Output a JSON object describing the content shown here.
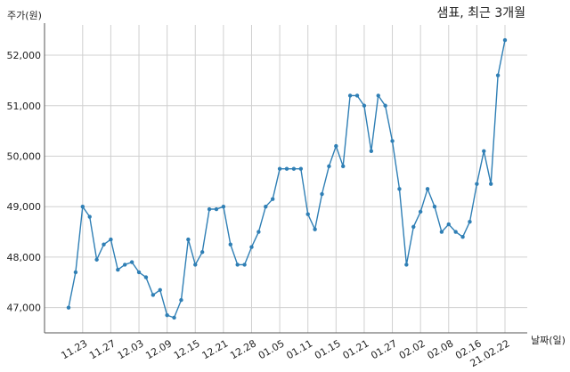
{
  "chart_data": {
    "type": "line",
    "title": "샘표, 최근 3개월",
    "xlabel": "날짜(일)",
    "ylabel": "주가(원)",
    "ylim": [
      46500,
      52600
    ],
    "yticks": [
      47000,
      48000,
      49000,
      50000,
      51000,
      52000
    ],
    "ytick_labels": [
      "47,000",
      "48,000",
      "49,000",
      "50,000",
      "51,000",
      "52,000"
    ],
    "xtick_labels": [
      "11.23",
      "11.27",
      "12.03",
      "12.09",
      "12.15",
      "12.21",
      "12.28",
      "01.05",
      "01.11",
      "01.15",
      "01.21",
      "01.27",
      "02.02",
      "02.08",
      "02.16",
      "21.02.22"
    ],
    "xtick_index": [
      2,
      6,
      10,
      14,
      18,
      22,
      26,
      30,
      34,
      38,
      42,
      46,
      50,
      54,
      58,
      62
    ],
    "grid": true,
    "line_color": "#2f7fb5",
    "series": [
      {
        "values": [
          47000,
          47700,
          49000,
          48800,
          47950,
          48250,
          48350,
          47750,
          47850,
          47900,
          47700,
          47600,
          47250,
          47350,
          46850,
          46800,
          47150,
          48350,
          47850,
          48100,
          48950,
          48950,
          49000,
          48250,
          47850,
          47850,
          48200,
          48500,
          49000,
          49150,
          49750,
          49750,
          49750,
          49750,
          48850,
          48550,
          49250,
          49800,
          50200,
          49800,
          51200,
          51200,
          51000,
          50100,
          51200,
          51000,
          50300,
          49350,
          47850,
          48600,
          48900,
          49350,
          49000,
          48500,
          48650,
          48500,
          48400,
          48700,
          49450,
          50100,
          49450,
          51600,
          52300
        ]
      }
    ]
  }
}
